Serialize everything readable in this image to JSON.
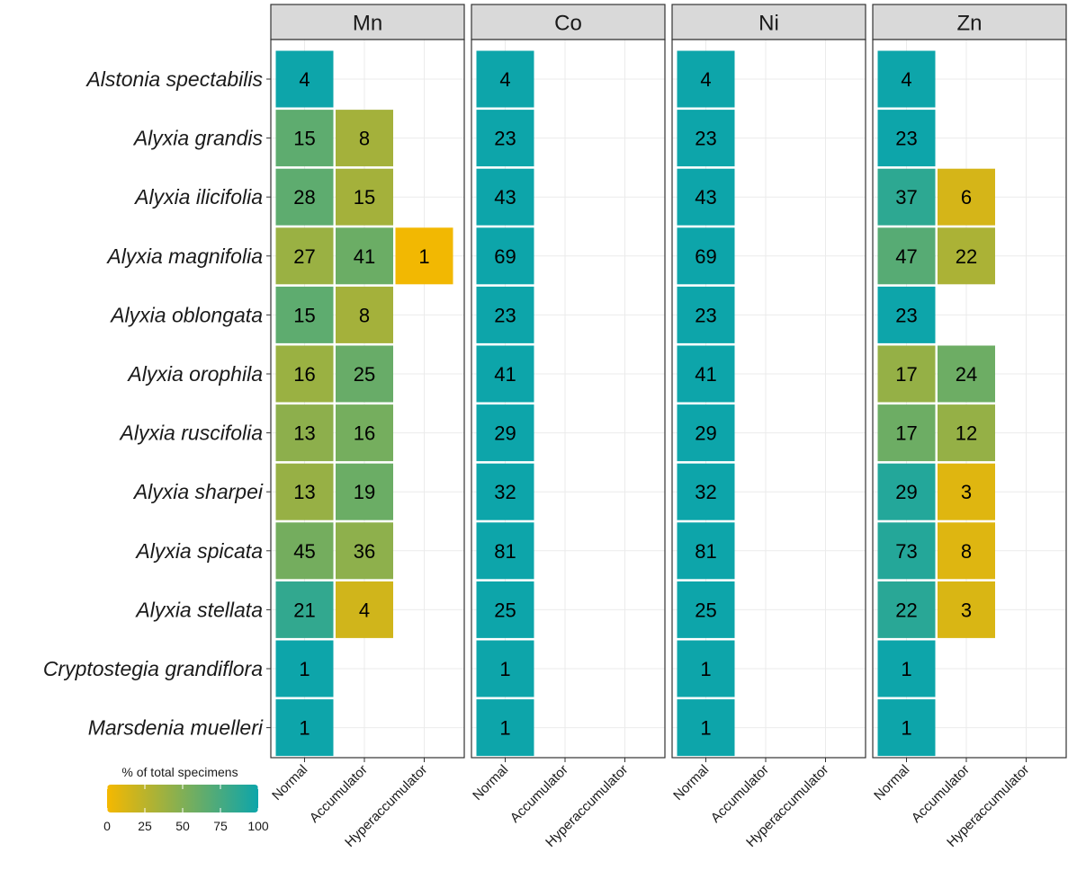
{
  "chart_data": {
    "type": "heatmap",
    "title": "",
    "facets": [
      "Mn",
      "Co",
      "Ni",
      "Zn"
    ],
    "categories": [
      "Normal",
      "Accumulator",
      "Hyperaccumulator"
    ],
    "species": [
      "Alstonia spectabilis",
      "Alyxia grandis",
      "Alyxia ilicifolia",
      "Alyxia magnifolia",
      "Alyxia oblongata",
      "Alyxia orophila",
      "Alyxia ruscifolia",
      "Alyxia sharpei",
      "Alyxia spicata",
      "Alyxia stellata",
      "Cryptostegia grandiflora",
      "Marsdenia muelleri"
    ],
    "counts": {
      "Mn": [
        [
          4,
          null,
          null
        ],
        [
          15,
          8,
          null
        ],
        [
          28,
          15,
          null
        ],
        [
          27,
          41,
          1
        ],
        [
          15,
          8,
          null
        ],
        [
          16,
          25,
          null
        ],
        [
          13,
          16,
          null
        ],
        [
          13,
          19,
          null
        ],
        [
          45,
          36,
          null
        ],
        [
          21,
          4,
          null
        ],
        [
          1,
          null,
          null
        ],
        [
          1,
          null,
          null
        ]
      ],
      "Co": [
        [
          4,
          null,
          null
        ],
        [
          23,
          null,
          null
        ],
        [
          43,
          null,
          null
        ],
        [
          69,
          null,
          null
        ],
        [
          23,
          null,
          null
        ],
        [
          41,
          null,
          null
        ],
        [
          29,
          null,
          null
        ],
        [
          32,
          null,
          null
        ],
        [
          81,
          null,
          null
        ],
        [
          25,
          null,
          null
        ],
        [
          1,
          null,
          null
        ],
        [
          1,
          null,
          null
        ]
      ],
      "Ni": [
        [
          4,
          null,
          null
        ],
        [
          23,
          null,
          null
        ],
        [
          43,
          null,
          null
        ],
        [
          69,
          null,
          null
        ],
        [
          23,
          null,
          null
        ],
        [
          41,
          null,
          null
        ],
        [
          29,
          null,
          null
        ],
        [
          32,
          null,
          null
        ],
        [
          81,
          null,
          null
        ],
        [
          25,
          null,
          null
        ],
        [
          1,
          null,
          null
        ],
        [
          1,
          null,
          null
        ]
      ],
      "Zn": [
        [
          4,
          null,
          null
        ],
        [
          23,
          null,
          null
        ],
        [
          37,
          6,
          null
        ],
        [
          47,
          22,
          null
        ],
        [
          23,
          null,
          null
        ],
        [
          17,
          24,
          null
        ],
        [
          17,
          12,
          null
        ],
        [
          29,
          3,
          null
        ],
        [
          73,
          8,
          null
        ],
        [
          22,
          3,
          null
        ],
        [
          1,
          null,
          null
        ],
        [
          1,
          null,
          null
        ]
      ]
    },
    "legend": {
      "title": "% of total specimens",
      "ticks": [
        0,
        25,
        50,
        75,
        100
      ],
      "low_color": "#F5B800",
      "high_color": "#0DA5AA"
    },
    "colors": {
      "strip_fill": "#D9D9D9",
      "grid": "#EBEBEB",
      "border": "#333333"
    }
  }
}
